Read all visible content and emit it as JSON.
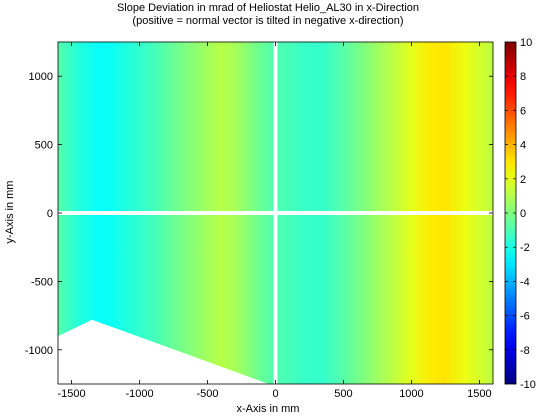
{
  "chart_data": {
    "type": "heatmap",
    "title": "Slope Deviation in mrad of Heliostat Helio_AL30 in x-Direction",
    "subtitle": "(positive = normal vector is tilted in negative x-direction)",
    "xlabel": "x-Axis in mm",
    "ylabel": "y-Axis in mm",
    "xlim": [
      -1600,
      1600
    ],
    "ylim": [
      -1250,
      1250
    ],
    "x_ticks": [
      -1500,
      -1000,
      -500,
      0,
      500,
      1000,
      1500
    ],
    "y_ticks": [
      -1000,
      -500,
      0,
      500,
      1000
    ],
    "colorbar": {
      "min": -10,
      "max": 10,
      "ticks": [
        10,
        8,
        6,
        4,
        2,
        0,
        -2,
        -4,
        -6,
        -8,
        -10
      ],
      "colormap": "jet"
    },
    "x_profile_mrad": {
      "x": [
        -1600,
        -1450,
        -1300,
        -1200,
        -1100,
        -900,
        -700,
        -500,
        -400,
        -300,
        -100,
        0,
        100,
        200,
        350,
        500,
        700,
        900,
        1000,
        1150,
        1250,
        1400,
        1600
      ],
      "value": [
        -0.8,
        -1.8,
        -2.4,
        -2.3,
        -1.9,
        -1.2,
        -0.2,
        0.7,
        1.1,
        0.8,
        -0.5,
        -1.0,
        -1.1,
        -1.4,
        -1.5,
        -0.8,
        0.3,
        1.4,
        2.0,
        2.9,
        3.0,
        2.1,
        1.2
      ]
    },
    "missing_regions": [
      {
        "name": "lower-left gap",
        "polygon": [
          [
            -1600,
            -1250
          ],
          [
            -1600,
            -900
          ],
          [
            -1350,
            -780
          ],
          [
            -50,
            -1250
          ]
        ]
      }
    ],
    "gaps": {
      "vertical_x": 0,
      "horizontal_y": 0
    },
    "grid": false
  }
}
